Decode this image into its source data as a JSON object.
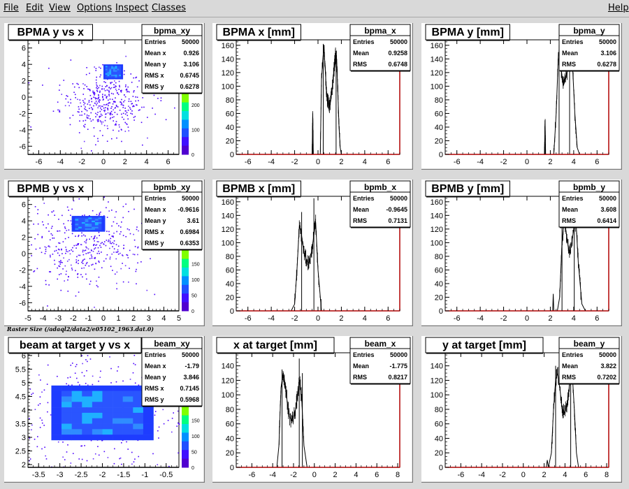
{
  "menu": {
    "items": [
      "File",
      "Edit",
      "View",
      "Options",
      "Inspect",
      "Classes"
    ],
    "help": "Help"
  },
  "caption": "Raster Size (/adaql2/data2/e05102_1963.dat.0)",
  "colors": {
    "background": "#d9d9d9",
    "frame": "#ffffff",
    "axis_frame": "#b00000",
    "hist_line": "#000000",
    "scatter": "#3f00ff"
  },
  "chart_data": [
    {
      "id": "bpma_xy",
      "type": "heatmap",
      "title": "BPMA y vs x",
      "stats": {
        "name": "bpma_xy",
        "rows": [
          [
            "Entries",
            "50000"
          ],
          [
            "Mean x",
            "0.926"
          ],
          [
            "Mean y",
            "3.106"
          ],
          [
            "RMS x",
            "0.6745"
          ],
          [
            "RMS y",
            "0.6278"
          ]
        ]
      },
      "xlim": [
        -7,
        7
      ],
      "ylim": [
        -7,
        7
      ],
      "xticks": [
        -6,
        -4,
        -2,
        0,
        2,
        4,
        6
      ],
      "yticks": [
        -6,
        -4,
        -2,
        0,
        2,
        4,
        6
      ],
      "core": {
        "x": [
          0.0,
          1.8
        ],
        "y": [
          2.2,
          4.0
        ]
      },
      "halo": {
        "mean_x": 0.0,
        "mean_y": -0.5,
        "spread_x": 2.0,
        "spread_y": 2.0
      },
      "palette_ticks": [
        "0",
        "100",
        "200",
        "300"
      ]
    },
    {
      "id": "bpma_x",
      "type": "line",
      "title": "BPMA x [mm]",
      "stats": {
        "name": "bpma_x",
        "rows": [
          [
            "Entries",
            "50000"
          ],
          [
            "Mean",
            "0.9258"
          ],
          [
            "RMS",
            "0.6748"
          ]
        ]
      },
      "xlim": [
        -7,
        7
      ],
      "ylim": [
        0,
        168
      ],
      "xticks": [
        -6,
        -4,
        -2,
        0,
        2,
        4,
        6
      ],
      "yticks": [
        0,
        20,
        40,
        60,
        80,
        100,
        120,
        140,
        160
      ],
      "x": [
        -0.5,
        -0.45,
        -0.4,
        0.2,
        0.3,
        0.5,
        0.6,
        0.7,
        0.8,
        0.9,
        1.0,
        1.1,
        1.2,
        1.3,
        1.4,
        1.5,
        1.6,
        1.7,
        1.8,
        1.9,
        2.0,
        2.2
      ],
      "y": [
        0,
        60,
        0,
        0,
        110,
        160,
        130,
        100,
        80,
        75,
        70,
        80,
        95,
        110,
        130,
        145,
        140,
        90,
        40,
        10,
        0,
        0
      ],
      "spikes": [
        [
          -0.45,
          60
        ],
        [
          0.45,
          162
        ],
        [
          1.55,
          150
        ]
      ]
    },
    {
      "id": "bpma_y",
      "type": "line",
      "title": "BPMA y [mm]",
      "stats": {
        "name": "bpma_y",
        "rows": [
          [
            "Entries",
            "50000"
          ],
          [
            "Mean",
            "3.106"
          ],
          [
            "RMS",
            "0.6278"
          ]
        ]
      },
      "xlim": [
        -7,
        7
      ],
      "ylim": [
        0,
        168
      ],
      "xticks": [
        -6,
        -4,
        -2,
        0,
        2,
        4,
        6
      ],
      "yticks": [
        0,
        20,
        40,
        60,
        80,
        100,
        120,
        140,
        160
      ],
      "x": [
        1.5,
        1.55,
        1.6,
        2.3,
        2.5,
        2.7,
        2.9,
        3.1,
        3.3,
        3.5,
        3.7,
        3.9,
        4.1,
        4.3,
        4.5
      ],
      "y": [
        0,
        50,
        0,
        0,
        60,
        150,
        130,
        100,
        110,
        125,
        150,
        130,
        60,
        10,
        0
      ],
      "spikes": [
        [
          1.55,
          50
        ],
        [
          2.75,
          160
        ],
        [
          3.65,
          150
        ]
      ]
    },
    {
      "id": "bpmb_xy",
      "type": "heatmap",
      "title": "BPMB y vs x",
      "stats": {
        "name": "bpmb_xy",
        "rows": [
          [
            "Entries",
            "50000"
          ],
          [
            "Mean x",
            "-0.9616"
          ],
          [
            "Mean y",
            "3.61"
          ],
          [
            "RMS x",
            "0.6984"
          ],
          [
            "RMS y",
            "0.6353"
          ]
        ]
      },
      "xlim": [
        -5,
        5
      ],
      "ylim": [
        -7,
        7
      ],
      "xticks": [
        -5,
        -4,
        -3,
        -2,
        -1,
        0,
        1,
        2,
        3,
        4,
        5
      ],
      "yticks": [
        -6,
        -4,
        -2,
        0,
        2,
        4,
        6
      ],
      "core": {
        "x": [
          -2.1,
          0.1
        ],
        "y": [
          2.7,
          4.6
        ]
      },
      "halo": {
        "mean_x": -1.2,
        "mean_y": 1.0,
        "spread_x": 2.0,
        "spread_y": 2.5
      },
      "palette_ticks": [
        "0",
        "50",
        "100",
        "150",
        "200",
        "250"
      ]
    },
    {
      "id": "bpmb_x",
      "type": "line",
      "title": "BPMB x [mm]",
      "stats": {
        "name": "bpmb_x",
        "rows": [
          [
            "Entries",
            "50000"
          ],
          [
            "Mean",
            "-0.9645"
          ],
          [
            "RMS",
            "0.7131"
          ]
        ]
      },
      "xlim": [
        -7,
        7
      ],
      "ylim": [
        0,
        168
      ],
      "xticks": [
        -6,
        -4,
        -2,
        0,
        2,
        4,
        6
      ],
      "yticks": [
        0,
        20,
        40,
        60,
        80,
        100,
        120,
        140,
        160
      ],
      "x": [
        -2.3,
        -2.0,
        -1.8,
        -1.6,
        -1.4,
        -1.2,
        -1.0,
        -0.8,
        -0.6,
        -0.4,
        -0.2,
        0.0,
        0.3
      ],
      "y": [
        0,
        10,
        60,
        125,
        110,
        85,
        75,
        70,
        80,
        105,
        130,
        60,
        0
      ],
      "spikes": [
        [
          -1.4,
          145
        ],
        [
          -0.35,
          165
        ]
      ]
    },
    {
      "id": "bpmb_y",
      "type": "line",
      "title": "BPMB y [mm]",
      "stats": {
        "name": "bpmb_y",
        "rows": [
          [
            "Entries",
            "50000"
          ],
          [
            "Mean",
            "3.608"
          ],
          [
            "RMS",
            "0.6414"
          ]
        ]
      },
      "xlim": [
        -7,
        7
      ],
      "ylim": [
        0,
        168
      ],
      "xticks": [
        -6,
        -4,
        -2,
        0,
        2,
        4,
        6
      ],
      "yticks": [
        0,
        20,
        40,
        60,
        80,
        100,
        120,
        140,
        160
      ],
      "x": [
        2.2,
        2.25,
        2.3,
        2.6,
        2.8,
        3.0,
        3.2,
        3.4,
        3.6,
        3.8,
        4.0,
        4.2,
        4.4,
        4.7,
        5.0
      ],
      "y": [
        0,
        25,
        0,
        0,
        20,
        100,
        135,
        110,
        85,
        95,
        120,
        130,
        70,
        10,
        0
      ],
      "spikes": [
        [
          3.0,
          160
        ],
        [
          4.05,
          155
        ]
      ]
    },
    {
      "id": "beam_xy",
      "type": "heatmap",
      "title": "beam at target y vs x",
      "stats": {
        "name": "beam_xy",
        "rows": [
          [
            "Entries",
            "50000"
          ],
          [
            "Mean x",
            "-1.79"
          ],
          [
            "Mean y",
            "3.846"
          ],
          [
            "RMS x",
            "0.7145"
          ],
          [
            "RMS y",
            "0.5968"
          ]
        ]
      },
      "xlim": [
        -3.75,
        -0.2
      ],
      "ylim": [
        1.9,
        6.1
      ],
      "xticks": [
        -3.5,
        -3,
        -2.5,
        -2,
        -1.5,
        -1,
        -0.5
      ],
      "yticks": [
        2,
        2.5,
        3,
        3.5,
        4,
        4.5,
        5,
        5.5,
        6
      ],
      "xtick_labels": [
        "-3.5",
        "-3",
        "-2.5",
        "-2",
        "-1.5",
        "-1",
        "-0.5"
      ],
      "ytick_labels": [
        "2",
        "2.5",
        "3",
        "3.5",
        "4",
        "4.5",
        "5",
        "5.5",
        "6"
      ],
      "core": {
        "x": [
          -3.2,
          -0.8
        ],
        "y": [
          2.9,
          4.9
        ]
      },
      "halo": {
        "mean_x": -2.0,
        "mean_y": 3.9,
        "spread_x": 1.3,
        "spread_y": 1.2
      },
      "palette_ticks": [
        "0",
        "50",
        "100",
        "150",
        "200",
        "250"
      ]
    },
    {
      "id": "beam_x",
      "type": "line",
      "title": "x at target [mm]",
      "stats": {
        "name": "beam_x",
        "rows": [
          [
            "Entries",
            "50000"
          ],
          [
            "Mean",
            "-1.775"
          ],
          [
            "RMS",
            "0.8217"
          ]
        ]
      },
      "xlim": [
        -7.5,
        8.2
      ],
      "ylim": [
        0,
        158
      ],
      "xticks": [
        -6,
        -4,
        -2,
        0,
        2,
        4,
        6,
        8
      ],
      "yticks": [
        0,
        20,
        40,
        60,
        80,
        100,
        120,
        140
      ],
      "x": [
        -3.6,
        -3.4,
        -3.2,
        -3.0,
        -2.8,
        -2.6,
        -2.4,
        -2.2,
        -2.0,
        -1.8,
        -1.6,
        -1.4,
        -1.2,
        -1.0,
        -0.7
      ],
      "y": [
        0,
        30,
        110,
        130,
        115,
        90,
        70,
        65,
        70,
        80,
        100,
        120,
        90,
        30,
        0
      ],
      "spikes": [
        [
          -3.1,
          135
        ],
        [
          -1.45,
          150
        ],
        [
          -1.15,
          130
        ]
      ]
    },
    {
      "id": "beam_y",
      "type": "line",
      "title": "y at target [mm]",
      "stats": {
        "name": "beam_y",
        "rows": [
          [
            "Entries",
            "50000"
          ],
          [
            "Mean",
            "3.822"
          ],
          [
            "RMS",
            "0.7202"
          ]
        ]
      },
      "xlim": [
        -7.5,
        8.2
      ],
      "ylim": [
        0,
        158
      ],
      "xticks": [
        -6,
        -4,
        -2,
        0,
        2,
        4,
        6,
        8
      ],
      "yticks": [
        0,
        20,
        40,
        60,
        80,
        100,
        120,
        140
      ],
      "x": [
        2.2,
        2.3,
        2.4,
        2.7,
        2.9,
        3.1,
        3.3,
        3.5,
        3.7,
        3.9,
        4.1,
        4.3,
        4.5,
        4.7,
        4.9,
        5.1,
        5.3
      ],
      "y": [
        0,
        10,
        0,
        20,
        80,
        120,
        130,
        110,
        85,
        75,
        80,
        95,
        125,
        130,
        80,
        20,
        0
      ],
      "spikes": [
        [
          3.1,
          140
        ],
        [
          4.55,
          150
        ]
      ]
    }
  ]
}
